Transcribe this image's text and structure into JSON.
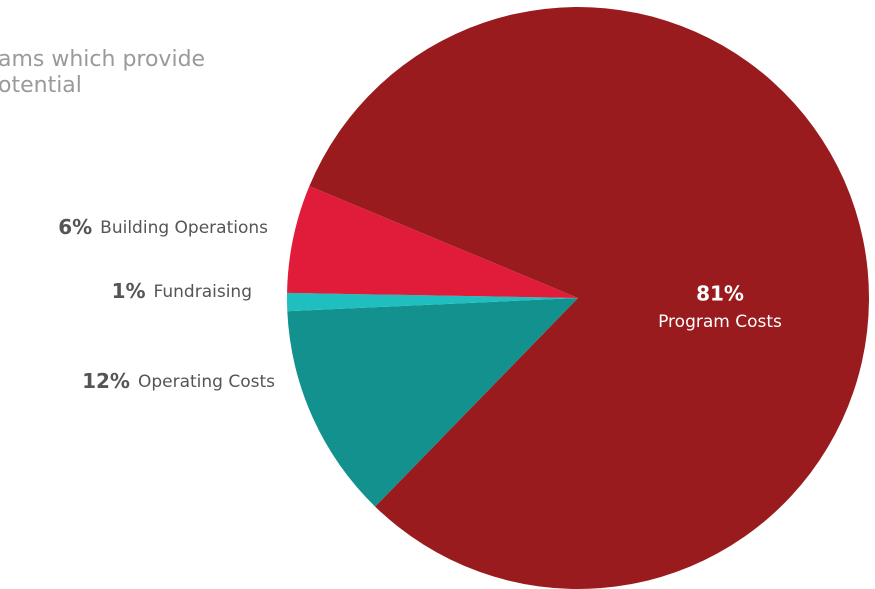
{
  "chart_data": {
    "type": "pie",
    "intro_lines": [
      "ams which provide",
      "otential"
    ],
    "categories": [
      "Program Costs",
      "Operating Costs",
      "Fundraising",
      "Building Operations"
    ],
    "values": [
      81,
      12,
      1,
      6
    ],
    "value_labels": [
      "81%",
      "12%",
      "1%",
      "6%"
    ],
    "colors": [
      "#991b1e",
      "#12918f",
      "#1fbfbf",
      "#e11b3a"
    ]
  }
}
